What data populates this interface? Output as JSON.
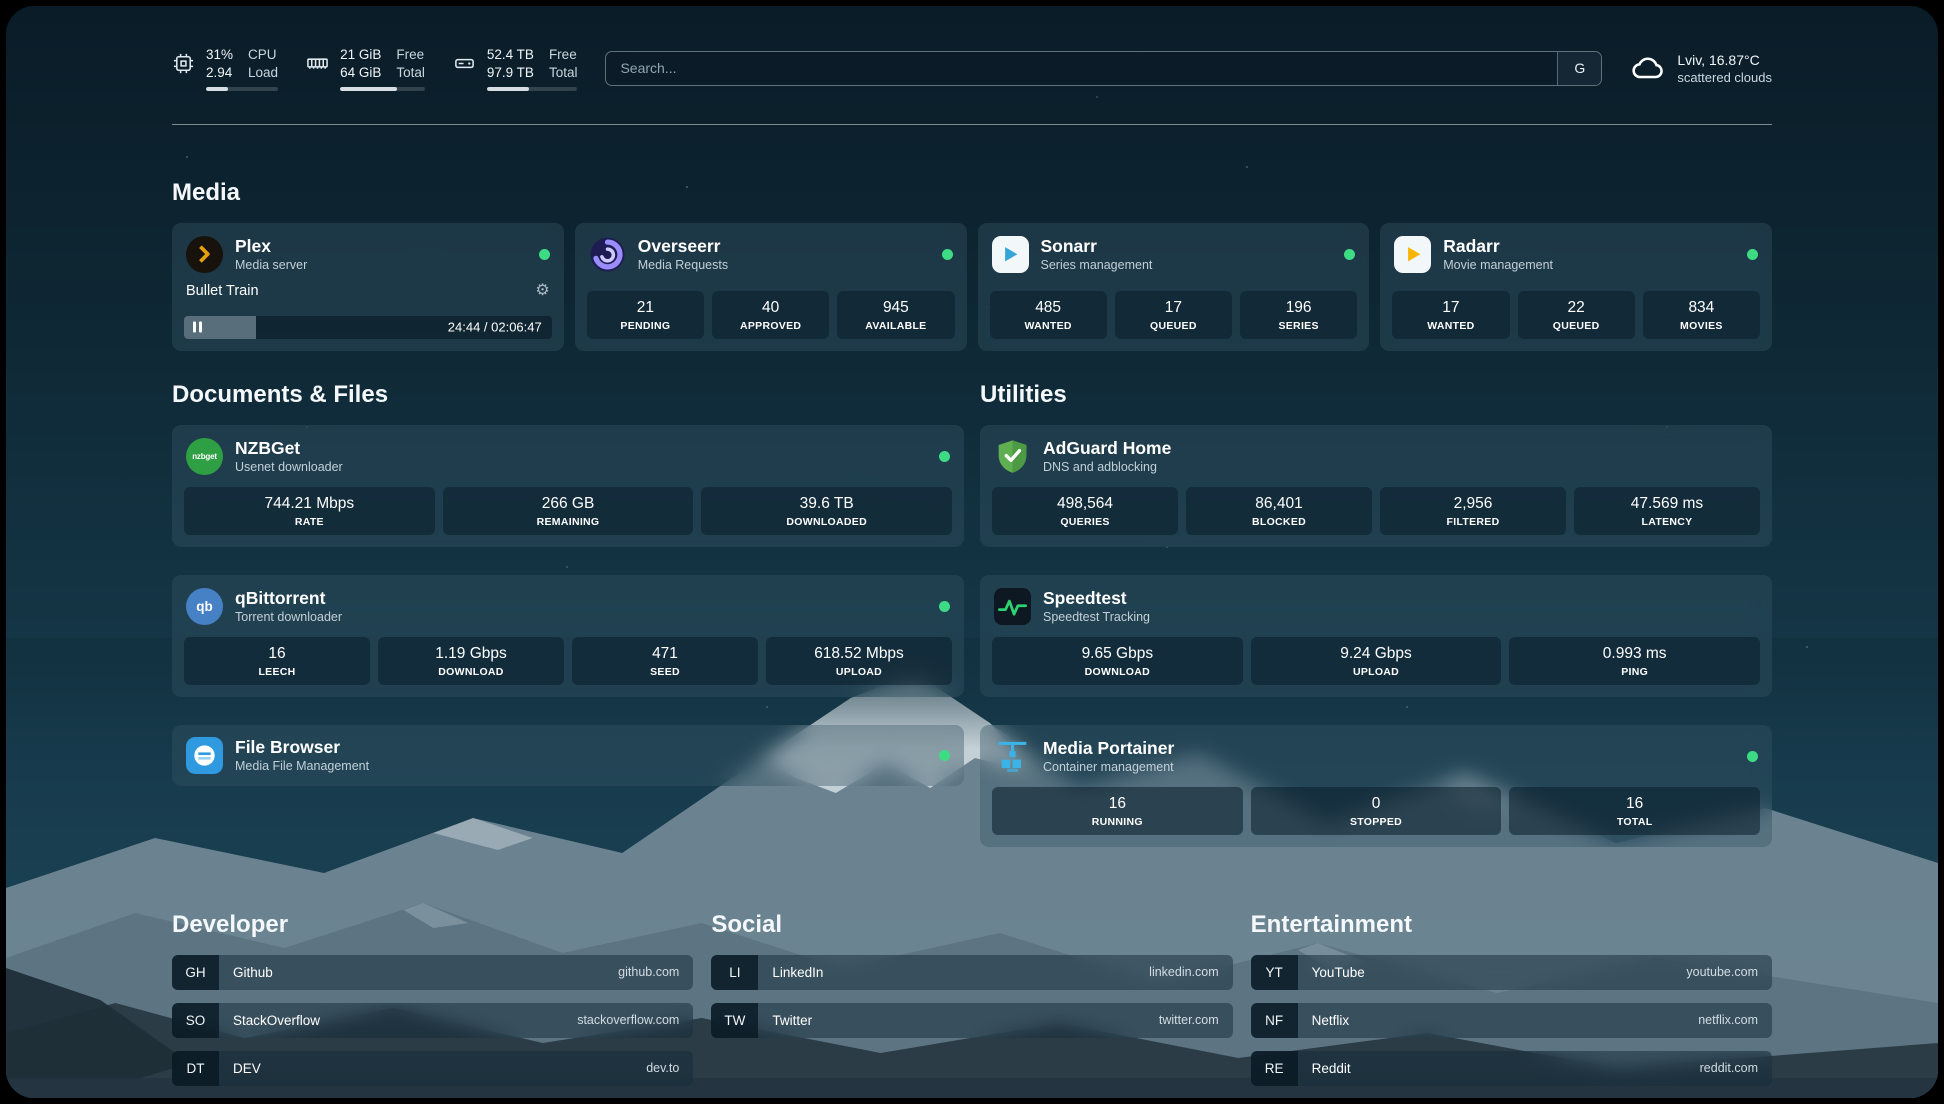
{
  "colors": {
    "status_online": "#3ddc84",
    "accent_snow": "#cdd8de"
  },
  "icons": {
    "gear": "⚙"
  },
  "topbar": {
    "cpu": {
      "value_top": "31%",
      "value_bottom": "2.94",
      "label_top": "CPU",
      "label_bottom": "Load",
      "progress": 31
    },
    "memory": {
      "value_top": "21 GiB",
      "value_bottom": "64 GiB",
      "label_top": "Free",
      "label_bottom": "Total",
      "progress": 67
    },
    "disk": {
      "value_top": "52.4 TB",
      "value_bottom": "97.9 TB",
      "label_top": "Free",
      "label_bottom": "Total",
      "progress": 46
    },
    "search": {
      "placeholder": "Search...",
      "provider": "G"
    },
    "weather": {
      "location": "Lviv, 16.87°C",
      "condition": "scattered clouds"
    }
  },
  "sections": {
    "media": "Media",
    "documents": "Documents & Files",
    "utilities": "Utilities",
    "developer": "Developer",
    "social": "Social",
    "entertainment": "Entertainment"
  },
  "cards": {
    "plex": {
      "title": "Plex",
      "subtitle": "Media server",
      "now_playing": "Bullet Train",
      "time": "24:44 / 02:06:47",
      "progress": 19.5
    },
    "overseerr": {
      "title": "Overseerr",
      "subtitle": "Media Requests",
      "stats": [
        {
          "value": "21",
          "label": "PENDING"
        },
        {
          "value": "40",
          "label": "APPROVED"
        },
        {
          "value": "945",
          "label": "AVAILABLE"
        }
      ]
    },
    "sonarr": {
      "title": "Sonarr",
      "subtitle": "Series management",
      "stats": [
        {
          "value": "485",
          "label": "WANTED"
        },
        {
          "value": "17",
          "label": "QUEUED"
        },
        {
          "value": "196",
          "label": "SERIES"
        }
      ]
    },
    "radarr": {
      "title": "Radarr",
      "subtitle": "Movie management",
      "stats": [
        {
          "value": "17",
          "label": "WANTED"
        },
        {
          "value": "22",
          "label": "QUEUED"
        },
        {
          "value": "834",
          "label": "MOVIES"
        }
      ]
    },
    "nzbget": {
      "title": "NZBGet",
      "subtitle": "Usenet downloader",
      "icon_text": "nzbget",
      "stats": [
        {
          "value": "744.21 Mbps",
          "label": "RATE"
        },
        {
          "value": "266 GB",
          "label": "REMAINING"
        },
        {
          "value": "39.6 TB",
          "label": "DOWNLOADED"
        }
      ]
    },
    "qbittorrent": {
      "title": "qBittorrent",
      "subtitle": "Torrent downloader",
      "icon_text": "qb",
      "stats": [
        {
          "value": "16",
          "label": "LEECH"
        },
        {
          "value": "1.19 Gbps",
          "label": "DOWNLOAD"
        },
        {
          "value": "471",
          "label": "SEED"
        },
        {
          "value": "618.52 Mbps",
          "label": "UPLOAD"
        }
      ]
    },
    "filebrowser": {
      "title": "File Browser",
      "subtitle": "Media File Management"
    },
    "adguard": {
      "title": "AdGuard Home",
      "subtitle": "DNS and adblocking",
      "stats": [
        {
          "value": "498,564",
          "label": "QUERIES"
        },
        {
          "value": "86,401",
          "label": "BLOCKED"
        },
        {
          "value": "2,956",
          "label": "FILTERED"
        },
        {
          "value": "47.569 ms",
          "label": "LATENCY"
        }
      ]
    },
    "speedtest": {
      "title": "Speedtest",
      "subtitle": "Speedtest Tracking",
      "stats": [
        {
          "value": "9.65 Gbps",
          "label": "DOWNLOAD"
        },
        {
          "value": "9.24 Gbps",
          "label": "UPLOAD"
        },
        {
          "value": "0.993 ms",
          "label": "PING"
        }
      ]
    },
    "portainer": {
      "title": "Media Portainer",
      "subtitle": "Container management",
      "stats": [
        {
          "value": "16",
          "label": "RUNNING"
        },
        {
          "value": "0",
          "label": "STOPPED"
        },
        {
          "value": "16",
          "label": "TOTAL"
        }
      ]
    }
  },
  "bookmarks": {
    "developer": [
      {
        "abbr": "GH",
        "name": "Github",
        "domain": "github.com"
      },
      {
        "abbr": "SO",
        "name": "StackOverflow",
        "domain": "stackoverflow.com"
      },
      {
        "abbr": "DT",
        "name": "DEV",
        "domain": "dev.to"
      }
    ],
    "social": [
      {
        "abbr": "LI",
        "name": "LinkedIn",
        "domain": "linkedin.com"
      },
      {
        "abbr": "TW",
        "name": "Twitter",
        "domain": "twitter.com"
      }
    ],
    "entertainment": [
      {
        "abbr": "YT",
        "name": "YouTube",
        "domain": "youtube.com"
      },
      {
        "abbr": "NF",
        "name": "Netflix",
        "domain": "netflix.com"
      },
      {
        "abbr": "RE",
        "name": "Reddit",
        "domain": "reddit.com"
      }
    ]
  }
}
